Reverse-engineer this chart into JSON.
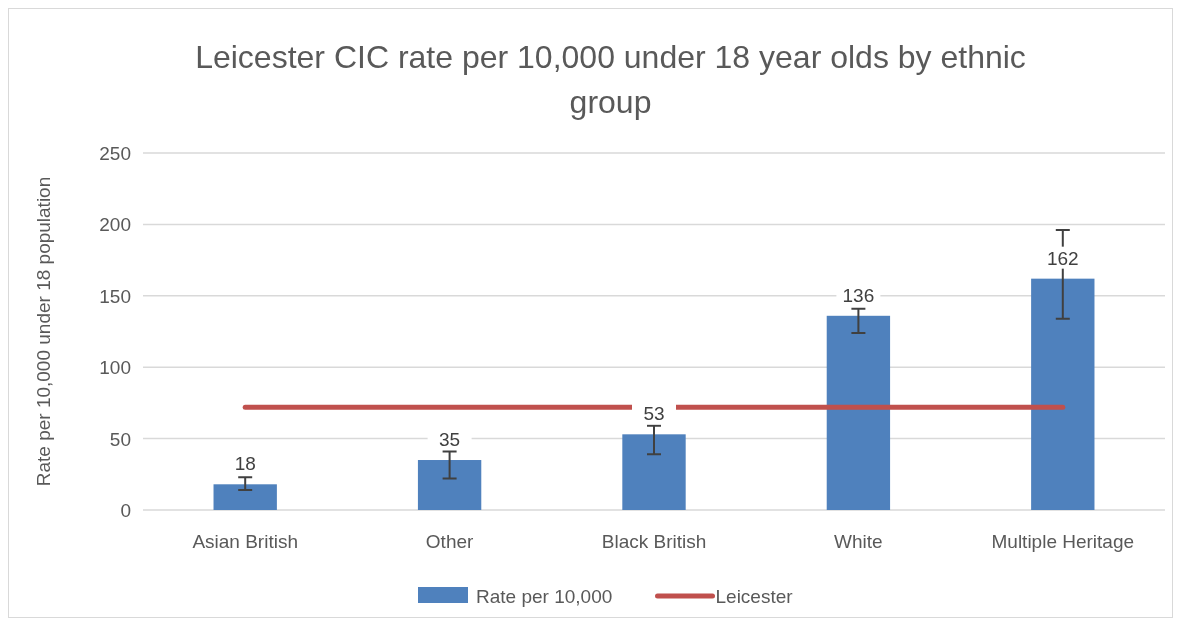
{
  "chart_data": {
    "type": "bar",
    "title": "Leicester CIC rate per 10,000 under 18 year olds by ethnic group",
    "ylabel": "Rate per 10,000 under 18 population",
    "categories": [
      "Asian British",
      "Other",
      "Black British",
      "White",
      "Multiple Heritage"
    ],
    "series": [
      {
        "name": "Rate per 10,000",
        "color": "#4f81bd",
        "values": [
          18,
          35,
          53,
          136,
          162
        ],
        "value_labels": [
          "18",
          "35",
          "53",
          "136",
          "162"
        ],
        "errors": [
          [
            14,
            23
          ],
          [
            22,
            41
          ],
          [
            39,
            59
          ],
          [
            124,
            141
          ],
          [
            134,
            196
          ]
        ]
      },
      {
        "name": "Leicester",
        "type": "line",
        "color": "#c0504d",
        "values": [
          72,
          72,
          null,
          72,
          72
        ]
      }
    ],
    "ylim": [
      0,
      250
    ],
    "yticks": [
      0,
      50,
      100,
      150,
      200,
      250
    ],
    "grid": "y",
    "legend": "bottom"
  }
}
